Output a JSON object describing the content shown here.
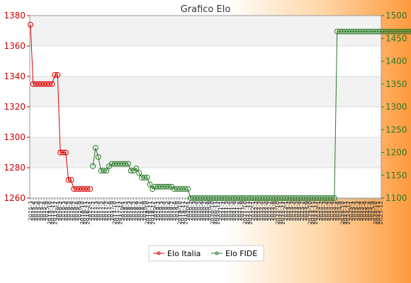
{
  "chart_data": {
    "type": "line",
    "title": "Grafico Elo",
    "grid": true,
    "legend": "bottom-center",
    "y_left": {
      "ylim": [
        1260,
        1380
      ],
      "ticks": [
        1260,
        1280,
        1300,
        1320,
        1340,
        1360,
        1380
      ]
    },
    "y_right": {
      "ylim": [
        1100,
        1500
      ],
      "ticks": [
        1100,
        1150,
        1200,
        1250,
        1300,
        1350,
        1400,
        1450,
        1500
      ]
    },
    "x_tick_labels": [
      "2015-3",
      "2015-4",
      "2015-5",
      "2015-6",
      "2015-7",
      "2015-8",
      "2015-9",
      "2015-10",
      "2015-11",
      "2015-12",
      "2016-1",
      "2016-2",
      "2016-3",
      "2016-4",
      "2016-5",
      "2016-6",
      "2016-7",
      "2016-8",
      "2016-9",
      "2016-10",
      "2016-11",
      "2016-12",
      "2017-1",
      "2017-2",
      "2017-3",
      "2017-4",
      "2017-5",
      "2017-6",
      "2017-7",
      "2017-8",
      "2017-9",
      "2017-10",
      "2017-11",
      "2017-12",
      "2018-1",
      "2018-2",
      "2018-3",
      "2018-4",
      "2018-5",
      "2018-6",
      "2018-7",
      "2018-8",
      "2018-9",
      "2018-10",
      "2018-11",
      "2018-12",
      "2019-1",
      "2019-2",
      "2019-3",
      "2019-4",
      "2019-5",
      "2019-6",
      "2019-7",
      "2019-8",
      "2019-9",
      "2019-10",
      "2019-11",
      "2019-12",
      "2020-1",
      "2020-2",
      "2020-3",
      "2020-4",
      "2020-5",
      "2020-6",
      "2020-7",
      "2020-8",
      "2020-9",
      "2020-10",
      "2020-11",
      "2020-12",
      "2021-1",
      "2021-2",
      "2021-3",
      "2021-4",
      "2021-5",
      "2021-6",
      "2021-7",
      "2021-8",
      "2021-9",
      "2021-10",
      "2021-11",
      "2021-12",
      "2022-1",
      "2022-2",
      "2022-3",
      "2022-4",
      "2022-5",
      "2022-6",
      "2022-7",
      "2022-8",
      "2022-9",
      "2022-10",
      "2022-11",
      "2022-12",
      "2023-1",
      "2023-2",
      "2023-3",
      "2023-4",
      "2023-5",
      "2023-6",
      "2023-7",
      "2023-8",
      "2023-9",
      "2023-10",
      "2023-11",
      "2023-12",
      "2024-1",
      "2024-2",
      "2024-3",
      "2024-4",
      "2024-5",
      "2024-6",
      "2024-7",
      "2024-8",
      "2024-9",
      "2024-10",
      "2024-11",
      "2024-12",
      "2025-1",
      "2025-2",
      "2025-3",
      "2025-4",
      "2025-5",
      "2025-6",
      "2025-7",
      "2025-8",
      "2025-9",
      "2025-10",
      "2025-11",
      "2025-12"
    ],
    "series": [
      {
        "name": "Elo Italia",
        "axis": "left",
        "color": "#dd0000",
        "points": [
          [
            0,
            1374
          ],
          [
            1,
            1335
          ],
          [
            2,
            1335
          ],
          [
            3,
            1335
          ],
          [
            4,
            1335
          ],
          [
            5,
            1335
          ],
          [
            6,
            1335
          ],
          [
            7,
            1335
          ],
          [
            8,
            1335
          ],
          [
            9,
            1341
          ],
          [
            10,
            1341
          ],
          [
            11,
            1290
          ],
          [
            12,
            1290
          ],
          [
            13,
            1290
          ],
          [
            14,
            1272
          ],
          [
            15,
            1272
          ],
          [
            16,
            1266
          ],
          [
            17,
            1266
          ],
          [
            18,
            1266
          ],
          [
            19,
            1266
          ],
          [
            20,
            1266
          ],
          [
            21,
            1266
          ],
          [
            22,
            1266
          ]
        ]
      },
      {
        "name": "Elo FIDE",
        "axis": "right",
        "color": "#2a7a2a",
        "points": [
          [
            23,
            1170
          ],
          [
            24,
            1210
          ],
          [
            25,
            1190
          ],
          [
            26,
            1160
          ],
          [
            27,
            1160
          ],
          [
            28,
            1160
          ],
          [
            29,
            1170
          ],
          [
            30,
            1175
          ],
          [
            31,
            1175
          ],
          [
            32,
            1175
          ],
          [
            33,
            1175
          ],
          [
            34,
            1175
          ],
          [
            35,
            1175
          ],
          [
            36,
            1175
          ],
          [
            37,
            1160
          ],
          [
            38,
            1160
          ],
          [
            39,
            1165
          ],
          [
            40,
            1155
          ],
          [
            41,
            1145
          ],
          [
            42,
            1145
          ],
          [
            43,
            1145
          ],
          [
            44,
            1130
          ],
          [
            45,
            1120
          ],
          [
            46,
            1125
          ],
          [
            47,
            1125
          ],
          [
            48,
            1125
          ],
          [
            49,
            1125
          ],
          [
            50,
            1125
          ],
          [
            51,
            1125
          ],
          [
            52,
            1125
          ],
          [
            53,
            1120
          ],
          [
            54,
            1120
          ],
          [
            55,
            1120
          ],
          [
            56,
            1120
          ],
          [
            57,
            1120
          ],
          [
            58,
            1120
          ],
          [
            59,
            1100
          ],
          [
            60,
            1100
          ],
          [
            61,
            1100
          ],
          [
            62,
            1100
          ],
          [
            63,
            1100
          ],
          [
            64,
            1100
          ],
          [
            65,
            1100
          ],
          [
            66,
            1100
          ],
          [
            67,
            1100
          ],
          [
            68,
            1100
          ],
          [
            69,
            1100
          ],
          [
            70,
            1100
          ],
          [
            71,
            1100
          ],
          [
            72,
            1100
          ],
          [
            73,
            1100
          ],
          [
            74,
            1100
          ],
          [
            75,
            1100
          ],
          [
            76,
            1100
          ],
          [
            77,
            1100
          ],
          [
            78,
            1100
          ],
          [
            79,
            1100
          ],
          [
            80,
            1100
          ],
          [
            81,
            1100
          ],
          [
            82,
            1100
          ],
          [
            83,
            1100
          ],
          [
            84,
            1100
          ],
          [
            85,
            1100
          ],
          [
            86,
            1100
          ],
          [
            87,
            1100
          ],
          [
            88,
            1100
          ],
          [
            89,
            1100
          ],
          [
            90,
            1100
          ],
          [
            91,
            1100
          ],
          [
            92,
            1100
          ],
          [
            93,
            1100
          ],
          [
            94,
            1100
          ],
          [
            95,
            1100
          ],
          [
            96,
            1100
          ],
          [
            97,
            1100
          ],
          [
            98,
            1100
          ],
          [
            99,
            1100
          ],
          [
            100,
            1100
          ],
          [
            101,
            1100
          ],
          [
            102,
            1100
          ],
          [
            103,
            1100
          ],
          [
            104,
            1100
          ],
          [
            105,
            1100
          ],
          [
            106,
            1100
          ],
          [
            107,
            1100
          ],
          [
            108,
            1100
          ],
          [
            109,
            1100
          ],
          [
            110,
            1100
          ],
          [
            111,
            1100
          ],
          [
            112,
            1100
          ],
          [
            113,
            1465
          ],
          [
            114,
            1465
          ],
          [
            115,
            1465
          ],
          [
            116,
            1465
          ],
          [
            117,
            1465
          ],
          [
            118,
            1465
          ],
          [
            119,
            1465
          ],
          [
            120,
            1465
          ],
          [
            121,
            1465
          ],
          [
            122,
            1465
          ],
          [
            123,
            1465
          ],
          [
            124,
            1465
          ],
          [
            125,
            1465
          ],
          [
            126,
            1465
          ],
          [
            127,
            1465
          ],
          [
            128,
            1465
          ],
          [
            129,
            1465
          ],
          [
            130,
            1465
          ],
          [
            131,
            1465
          ],
          [
            132,
            1465
          ],
          [
            133,
            1465
          ],
          [
            134,
            1465
          ],
          [
            135,
            1465
          ],
          [
            136,
            1465
          ],
          [
            137,
            1465
          ],
          [
            138,
            1465
          ],
          [
            139,
            1465
          ],
          [
            140,
            1465
          ],
          [
            141,
            1465
          ],
          [
            142,
            1465
          ],
          [
            143,
            1465
          ],
          [
            144,
            1465
          ],
          [
            145,
            1465
          ],
          [
            146,
            1465
          ],
          [
            147,
            1465
          ],
          [
            148,
            1465
          ],
          [
            149,
            1465
          ],
          [
            150,
            1465
          ],
          [
            151,
            1465
          ],
          [
            152,
            1465
          ],
          [
            153,
            1465
          ],
          [
            154,
            1465
          ],
          [
            155,
            1465
          ],
          [
            156,
            1465
          ],
          [
            157,
            1465
          ],
          [
            158,
            1465
          ],
          [
            159,
            1465
          ]
        ]
      }
    ]
  }
}
